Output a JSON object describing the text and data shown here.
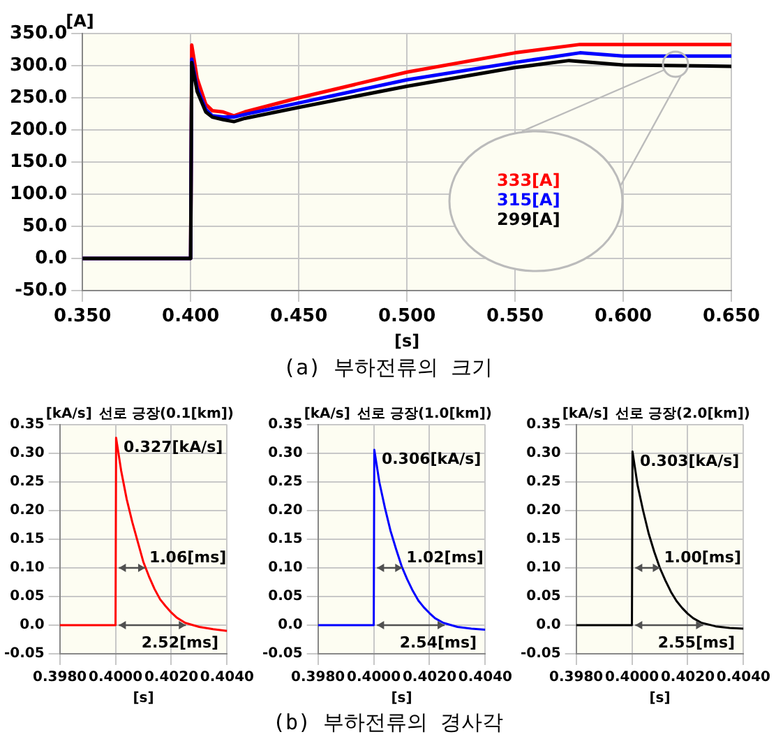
{
  "chart_data": [
    {
      "type": "line",
      "title": "(a) 부하전류의 크기",
      "xlabel": "[s]",
      "ylabel": "[A]",
      "xlim": [
        0.35,
        0.65
      ],
      "ylim": [
        -50,
        350
      ],
      "xticks": [
        {
          "value": 0.35,
          "label": "0.350"
        },
        {
          "value": 0.4,
          "label": "0.400"
        },
        {
          "value": 0.45,
          "label": "0.450"
        },
        {
          "value": 0.5,
          "label": "0.500"
        },
        {
          "value": 0.55,
          "label": "0.550"
        },
        {
          "value": 0.6,
          "label": "0.600"
        },
        {
          "value": 0.65,
          "label": "0.650"
        }
      ],
      "yticks": [
        {
          "value": -50,
          "label": "-50.0"
        },
        {
          "value": 0,
          "label": "0.0"
        },
        {
          "value": 50,
          "label": "50.0"
        },
        {
          "value": 100,
          "label": "100.0"
        },
        {
          "value": 150,
          "label": "150.0"
        },
        {
          "value": 200,
          "label": "200.0"
        },
        {
          "value": 250,
          "label": "250.0"
        },
        {
          "value": 300,
          "label": "300.0"
        },
        {
          "value": 350,
          "label": "350.0"
        }
      ],
      "grid": true,
      "series": [
        {
          "color": "#ff0000",
          "x": [
            0.35,
            0.4,
            0.4005,
            0.403,
            0.407,
            0.41,
            0.415,
            0.42,
            0.425,
            0.45,
            0.5,
            0.55,
            0.58,
            0.6,
            0.65
          ],
          "values": [
            0,
            0,
            332,
            280,
            240,
            230,
            228,
            222,
            228,
            250,
            290,
            320,
            333,
            333,
            333
          ]
        },
        {
          "color": "#0000ff",
          "x": [
            0.35,
            0.4,
            0.4005,
            0.403,
            0.407,
            0.41,
            0.415,
            0.42,
            0.425,
            0.45,
            0.5,
            0.55,
            0.58,
            0.6,
            0.65
          ],
          "values": [
            0,
            0,
            310,
            265,
            232,
            222,
            220,
            220,
            224,
            242,
            278,
            305,
            320,
            315,
            315
          ]
        },
        {
          "color": "#000000",
          "x": [
            0.35,
            0.4,
            0.4005,
            0.403,
            0.407,
            0.41,
            0.415,
            0.42,
            0.425,
            0.45,
            0.5,
            0.55,
            0.575,
            0.6,
            0.65
          ],
          "values": [
            0,
            0,
            305,
            260,
            228,
            220,
            216,
            213,
            218,
            235,
            268,
            297,
            308,
            301,
            299
          ]
        }
      ],
      "annotations": [
        "333[A]",
        "315[A]",
        "299[A]"
      ]
    },
    {
      "type": "line",
      "title": "선로 긍장(0.1[km])",
      "xlabel": "[s]",
      "ylabel": "[kA/s]",
      "xlim": [
        0.398,
        0.404
      ],
      "ylim": [
        -0.05,
        0.35
      ],
      "xticks": [
        {
          "value": 0.398,
          "label": "0.3980"
        },
        {
          "value": 0.4,
          "label": "0.4000"
        },
        {
          "value": 0.402,
          "label": "0.4020"
        },
        {
          "value": 0.404,
          "label": "0.4040"
        }
      ],
      "yticks": [
        -0.05,
        {
          "value": 0,
          "label": "0.0"
        },
        0.05,
        {
          "value": 0.1,
          "label": "0.10"
        },
        0.15,
        {
          "value": 0.2,
          "label": "0.20"
        },
        0.25,
        {
          "value": 0.3,
          "label": "0.30"
        },
        0.35
      ],
      "grid": true,
      "series": [
        {
          "color": "#ff0000",
          "x": [
            0.398,
            0.4,
            0.40002,
            0.4002,
            0.4004,
            0.4006,
            0.4008,
            0.401,
            0.4012,
            0.4014,
            0.4016,
            0.4018,
            0.402,
            0.4022,
            0.4025,
            0.403,
            0.4035,
            0.404
          ],
          "values": [
            0,
            0,
            0.327,
            0.27,
            0.22,
            0.18,
            0.145,
            0.11,
            0.085,
            0.063,
            0.045,
            0.033,
            0.022,
            0.013,
            0.004,
            -0.003,
            -0.007,
            -0.01
          ]
        }
      ],
      "annotations": [
        {
          "text": "0.327[kA/s]",
          "x": 0.40002,
          "y": 0.327
        },
        {
          "text": "1.06[ms]",
          "x": 0.40106,
          "y": 0.1
        },
        {
          "text": "2.52[ms]",
          "x": 0.40252,
          "y": 0
        }
      ]
    },
    {
      "type": "line",
      "title": "선로 긍장(1.0[km])",
      "xlabel": "[s]",
      "ylabel": "[kA/s]",
      "xlim": [
        0.398,
        0.404
      ],
      "ylim": [
        -0.05,
        0.35
      ],
      "xticks": [
        {
          "value": 0.398,
          "label": "0.3980"
        },
        {
          "value": 0.4,
          "label": "0.4000"
        },
        {
          "value": 0.402,
          "label": "0.4020"
        },
        {
          "value": 0.404,
          "label": "0.4040"
        }
      ],
      "yticks": [
        -0.05,
        {
          "value": 0,
          "label": "0.0"
        },
        0.05,
        {
          "value": 0.1,
          "label": "0.10"
        },
        0.15,
        {
          "value": 0.2,
          "label": "0.20"
        },
        0.25,
        {
          "value": 0.3,
          "label": "0.30"
        },
        0.35
      ],
      "grid": true,
      "series": [
        {
          "color": "#0000ff",
          "x": [
            0.398,
            0.4,
            0.40002,
            0.4002,
            0.4004,
            0.4006,
            0.4008,
            0.401,
            0.4012,
            0.4014,
            0.4016,
            0.4018,
            0.402,
            0.4022,
            0.4025,
            0.403,
            0.4035,
            0.404
          ],
          "values": [
            0,
            0,
            0.306,
            0.25,
            0.205,
            0.165,
            0.133,
            0.103,
            0.08,
            0.06,
            0.043,
            0.031,
            0.021,
            0.012,
            0.004,
            -0.003,
            -0.006,
            -0.008
          ]
        }
      ],
      "annotations": [
        {
          "text": "0.306[kA/s]",
          "x": 0.40002,
          "y": 0.306
        },
        {
          "text": "1.02[ms]",
          "x": 0.40102,
          "y": 0.1
        },
        {
          "text": "2.54[ms]",
          "x": 0.40254,
          "y": 0
        },
        "(b) 부하전류의 경사각"
      ]
    },
    {
      "type": "line",
      "title": "선로 긍장(2.0[km])",
      "xlabel": "[s]",
      "ylabel": "[kA/s]",
      "xlim": [
        0.398,
        0.404
      ],
      "ylim": [
        -0.05,
        0.35
      ],
      "xticks": [
        {
          "value": 0.398,
          "label": "0.3980"
        },
        {
          "value": 0.4,
          "label": "0.4000"
        },
        {
          "value": 0.402,
          "label": "0.4020"
        },
        {
          "value": 0.404,
          "label": "0.4040"
        }
      ],
      "yticks": [
        -0.05,
        {
          "value": 0,
          "label": "0.0"
        },
        0.05,
        {
          "value": 0.1,
          "label": "0.10"
        },
        0.15,
        {
          "value": 0.2,
          "label": "0.20"
        },
        0.25,
        {
          "value": 0.3,
          "label": "0.30"
        },
        0.35
      ],
      "grid": true,
      "series": [
        {
          "color": "#000000",
          "x": [
            0.398,
            0.4,
            0.40002,
            0.4002,
            0.4004,
            0.4006,
            0.4008,
            0.401,
            0.4012,
            0.4014,
            0.4016,
            0.4018,
            0.402,
            0.4022,
            0.4025,
            0.403,
            0.4035,
            0.404
          ],
          "values": [
            0,
            0,
            0.303,
            0.245,
            0.2,
            0.16,
            0.128,
            0.1,
            0.078,
            0.058,
            0.042,
            0.03,
            0.02,
            0.012,
            0.004,
            -0.002,
            -0.005,
            -0.006
          ]
        }
      ],
      "annotations": [
        {
          "text": "0.303[kA/s]",
          "x": 0.40002,
          "y": 0.303
        },
        {
          "text": "1.00[ms]",
          "x": 0.401,
          "y": 0.1
        },
        {
          "text": "2.55[ms]",
          "x": 0.40255,
          "y": 0
        }
      ]
    }
  ]
}
